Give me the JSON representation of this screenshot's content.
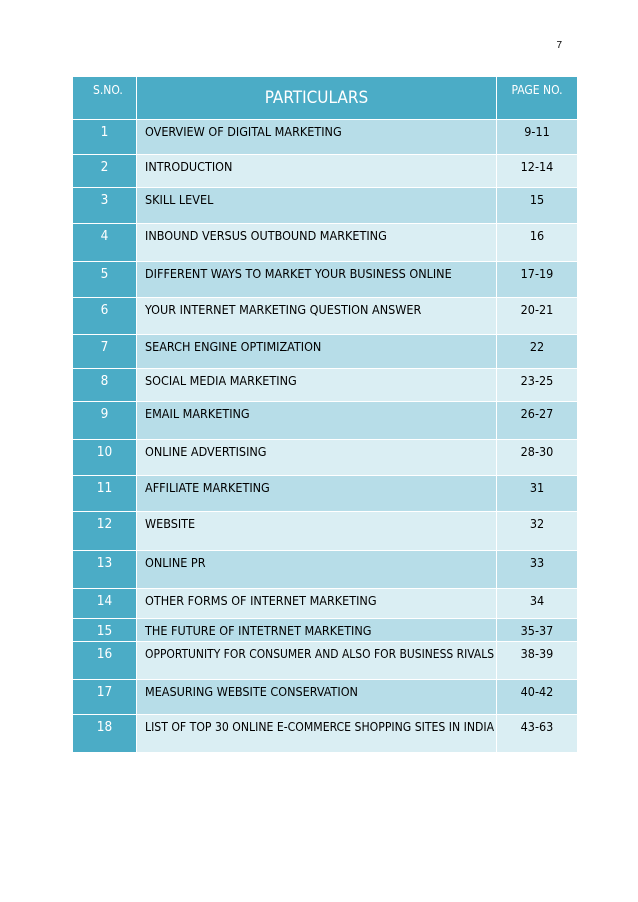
{
  "page_number": "7",
  "headers": {
    "sno": "S.NO.",
    "particulars": "PARTICULARS",
    "page_no": "PAGE NO."
  },
  "rows": [
    {
      "sno": "1",
      "title": "OVERVIEW OF DIGITAL MARKETING",
      "pages": "9-11"
    },
    {
      "sno": "2",
      "title": "INTRODUCTION",
      "pages": "12-14"
    },
    {
      "sno": "3",
      "title": "SKILL LEVEL",
      "pages": "15"
    },
    {
      "sno": "4",
      "title": "INBOUND VERSUS OUTBOUND MARKETING",
      "pages": "16"
    },
    {
      "sno": "5",
      "title": "DIFFERENT WAYS TO MARKET YOUR BUSINESS ONLINE",
      "pages": "17-19"
    },
    {
      "sno": "6",
      "title": "YOUR INTERNET MARKETING QUESTION ANSWER",
      "pages": "20-21"
    },
    {
      "sno": "7",
      "title": "SEARCH ENGINE OPTIMIZATION",
      "pages": "22"
    },
    {
      "sno": "8",
      "title": "SOCIAL MEDIA MARKETING",
      "pages": "23-25"
    },
    {
      "sno": "9",
      "title": "EMAIL MARKETING",
      "pages": "26-27"
    },
    {
      "sno": "10",
      "title": "ONLINE ADVERTISING",
      "pages": "28-30"
    },
    {
      "sno": "11",
      "title": "AFFILIATE MARKETING",
      "pages": "31"
    },
    {
      "sno": "12",
      "title": "WEBSITE",
      "pages": "32"
    },
    {
      "sno": "13",
      "title": "ONLINE PR",
      "pages": "33"
    },
    {
      "sno": "14",
      "title": "OTHER FORMS OF INTERNET MARKETING",
      "pages": "34"
    },
    {
      "sno": "15",
      "title": "THE FUTURE OF INTETRNET MARKETING",
      "pages": "35-37"
    },
    {
      "sno": "16",
      "title": "OPPORTUNITY FOR CONSUMER AND ALSO FOR BUSINESS RIVALS",
      "pages": "38-39"
    },
    {
      "sno": "17",
      "title": "MEASURING WEBSITE CONSERVATION",
      "pages": "40-42"
    },
    {
      "sno": "18",
      "title": "LIST OF TOP 30 ONLINE E-COMMERCE SHOPPING SITES IN INDIA",
      "pages": "43-63"
    }
  ],
  "colors": {
    "header_bg": "#4bacc6",
    "row_dark": "#b7dde8",
    "row_light": "#daeef3"
  }
}
